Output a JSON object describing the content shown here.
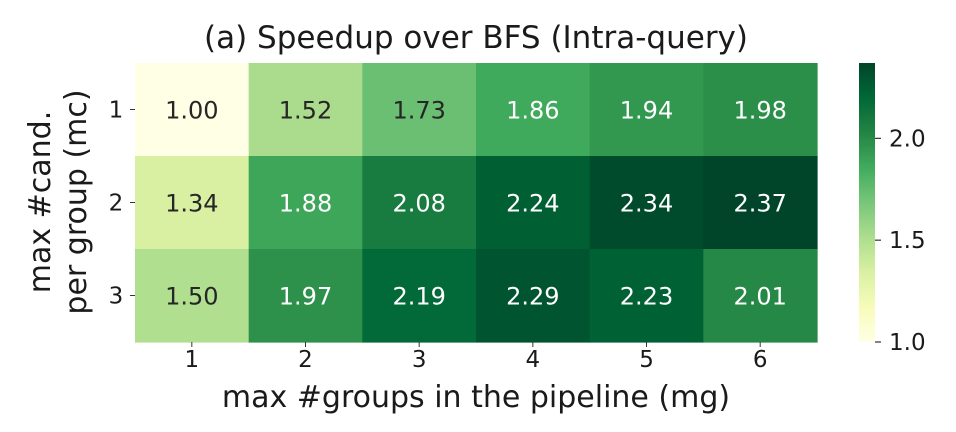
{
  "chart_data": {
    "type": "heatmap",
    "title": "(a) Speedup over BFS (Intra-query)",
    "xlabel": "max #groups in the pipeline (mg)",
    "ylabel_lines": [
      "max #cand.",
      "per group (mc)"
    ],
    "x_categories": [
      "1",
      "2",
      "3",
      "4",
      "5",
      "6"
    ],
    "y_categories": [
      "1",
      "2",
      "3"
    ],
    "values": [
      [
        1.0,
        1.52,
        1.73,
        1.86,
        1.94,
        1.98
      ],
      [
        1.34,
        1.88,
        2.08,
        2.24,
        2.34,
        2.37
      ],
      [
        1.5,
        1.97,
        2.19,
        2.29,
        2.23,
        2.01
      ]
    ],
    "value_labels": [
      [
        "1.00",
        "1.52",
        "1.73",
        "1.86",
        "1.94",
        "1.98"
      ],
      [
        "1.34",
        "1.88",
        "2.08",
        "2.24",
        "2.34",
        "2.37"
      ],
      [
        "1.50",
        "1.97",
        "2.19",
        "2.29",
        "2.23",
        "2.01"
      ]
    ],
    "colormap": "YlGn",
    "vmin": 1.0,
    "vmax": 2.37,
    "colorbar_ticks": [
      1.0,
      1.5,
      2.0
    ],
    "colorbar_tick_labels": [
      "1.0",
      "1.5",
      "2.0"
    ]
  }
}
